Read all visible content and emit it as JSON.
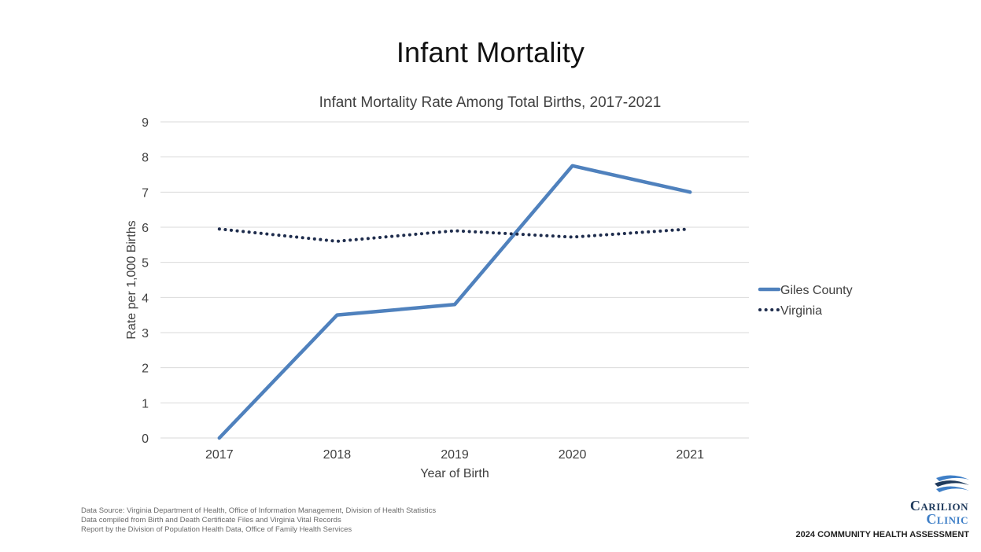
{
  "page": {
    "title": "Infant Mortality"
  },
  "chart_data": {
    "type": "line",
    "title": "Infant Mortality Rate Among Total Births, 2017-2021",
    "xlabel": "Year of Birth",
    "ylabel": "Rate per 1,000 Births",
    "categories": [
      "2017",
      "2018",
      "2019",
      "2020",
      "2021"
    ],
    "ylim": [
      0,
      9
    ],
    "yticks": [
      0,
      1,
      2,
      3,
      4,
      5,
      6,
      7,
      8,
      9
    ],
    "grid": true,
    "legend_position": "right",
    "series": [
      {
        "name": "Giles County",
        "values": [
          0,
          3.5,
          3.8,
          7.75,
          7.0
        ],
        "color": "#4f81bd",
        "style": "solid"
      },
      {
        "name": "Virginia",
        "values": [
          5.95,
          5.6,
          5.9,
          5.72,
          5.95
        ],
        "color": "#1f2d4d",
        "style": "dotted"
      }
    ]
  },
  "footer": {
    "source_lines": [
      "Data Source: Virginia Department of Health, Office of Information Management, Division of Health Statistics",
      "Data compiled from Birth and Death Certificate Files and Virginia Vital Records",
      "Report by the Division of Population Health Data, Office of Family Health Services"
    ]
  },
  "branding": {
    "logo_line1": "Carilion",
    "logo_line2": "Clinic",
    "tagline": "2024 COMMUNITY HEALTH ASSESSMENT"
  }
}
